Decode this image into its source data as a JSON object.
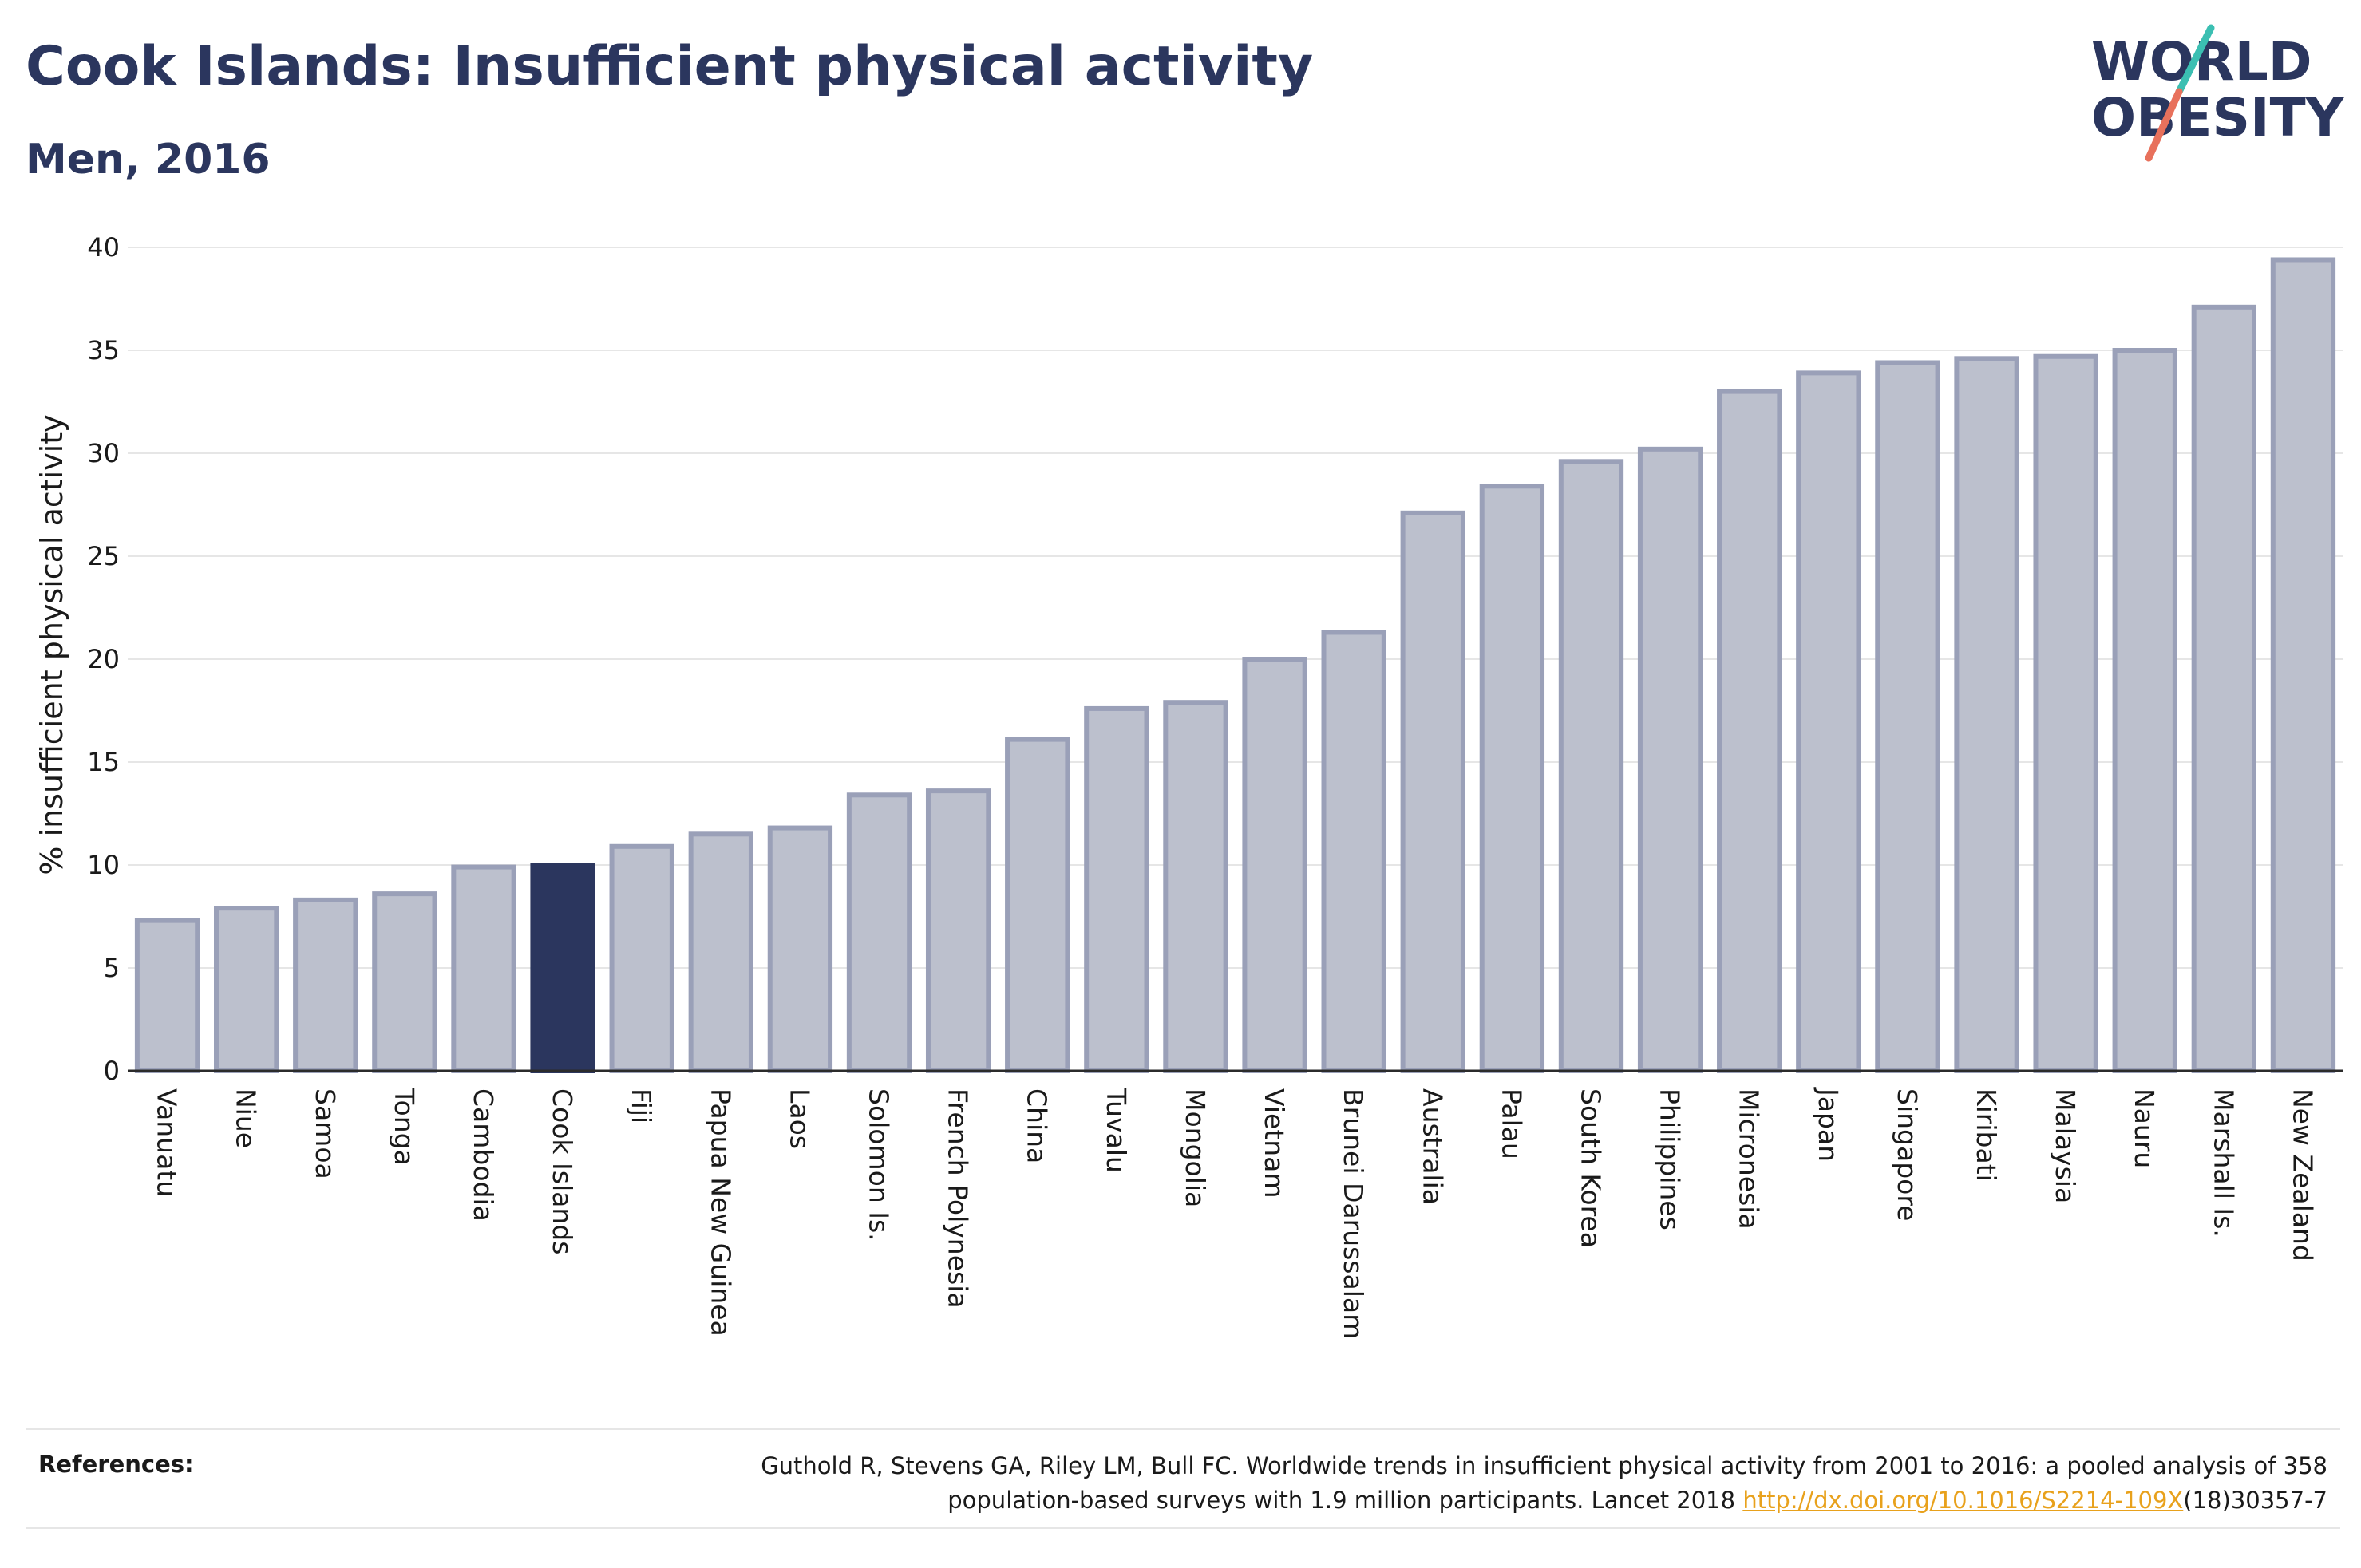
{
  "header": {
    "title": "Cook Islands: Insufficient physical activity",
    "subtitle": "Men, 2016"
  },
  "logo": {
    "line1": "WORLD",
    "line2": "OBESITY",
    "text_color": "#2b365e",
    "slash_top_color": "#3bbfb2",
    "slash_bottom_color": "#e8715c"
  },
  "colors": {
    "bar_fill": "#bcc0cd",
    "bar_stroke": "#9aa0b8",
    "highlight": "#2b365e",
    "grid": "#e6e6e6",
    "link": "#e8a11c"
  },
  "chart_data": {
    "type": "bar",
    "ylabel": "% insufficient physical activity",
    "ylim": [
      0,
      40
    ],
    "yticks": [
      0,
      5,
      10,
      15,
      20,
      25,
      30,
      35,
      40
    ],
    "grid": true,
    "highlight": "Cook Islands",
    "categories": [
      "Vanuatu",
      "Niue",
      "Samoa",
      "Tonga",
      "Cambodia",
      "Cook Islands",
      "Fiji",
      "Papua New Guinea",
      "Laos",
      "Solomon Is.",
      "French Polynesia",
      "China",
      "Tuvalu",
      "Mongolia",
      "Vietnam",
      "Brunei Darussalam",
      "Australia",
      "Palau",
      "South Korea",
      "Philippines",
      "Micronesia",
      "Japan",
      "Singapore",
      "Kiribati",
      "Malaysia",
      "Nauru",
      "Marshall Is.",
      "New Zealand"
    ],
    "values": [
      7.3,
      7.9,
      8.3,
      8.6,
      9.9,
      10.0,
      10.9,
      11.5,
      11.8,
      13.4,
      13.6,
      16.1,
      17.6,
      17.9,
      20.0,
      21.3,
      27.1,
      28.4,
      29.6,
      30.2,
      33.0,
      33.9,
      34.4,
      34.6,
      34.7,
      35.0,
      37.1,
      39.4
    ]
  },
  "references": {
    "label": "References:",
    "line1": "Guthold R, Stevens GA, Riley LM, Bull FC. Worldwide trends in insufficient physical activity from 2001 to 2016: a pooled analysis of 358",
    "line2_prefix": "population-based surveys with 1.9 million participants. Lancet 2018 ",
    "link_text": "http://dx.doi.org/10.1016/S2214-109X",
    "line2_suffix": "(18)30357-7"
  }
}
